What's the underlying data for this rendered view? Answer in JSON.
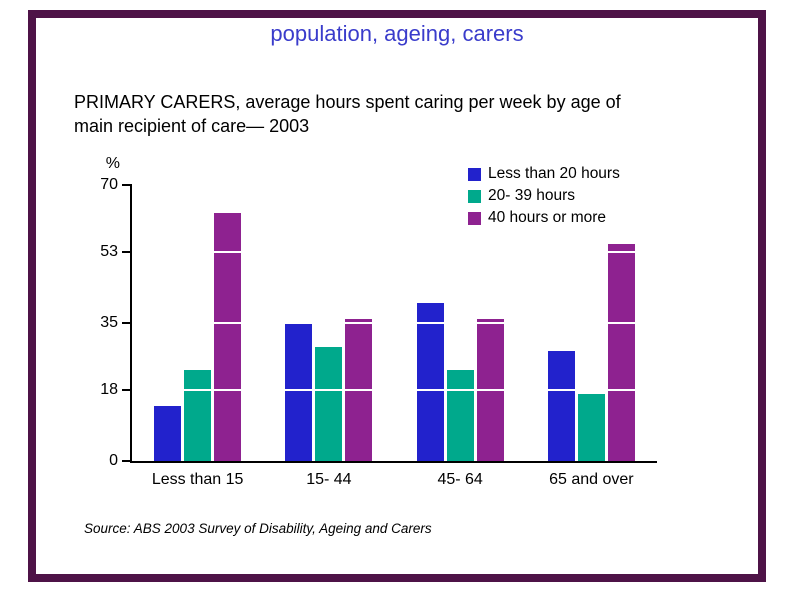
{
  "slide": {
    "title": "population, ageing, carers",
    "subtitle_line1": "PRIMARY CARERS, average hours spent caring per week by age of",
    "subtitle_line2": "main recipient of care— 2003",
    "source": "Source: ABS 2003 Survey of Disability, Ageing and Carers",
    "border_color": "#4e1347",
    "title_color": "#3a3ccb"
  },
  "chart_data": {
    "type": "bar",
    "title": "PRIMARY CARERS, average hours spent caring per week by age of main recipient of care— 2003",
    "ylabel": "%",
    "xlabel": "",
    "categories": [
      "Less than 15",
      "15- 44",
      "45- 64",
      "65 and over"
    ],
    "yticks": [
      0,
      18,
      35,
      53,
      70
    ],
    "ylim": [
      0,
      70
    ],
    "grid": "white-gridlines-over-bars",
    "legend_position": "top-right",
    "series": [
      {
        "name": "Less than 20 hours",
        "color": "#2222cc",
        "values": [
          14,
          35,
          40,
          28
        ]
      },
      {
        "name": "20- 39 hours",
        "color": "#00a98c",
        "values": [
          23,
          29,
          23,
          17
        ]
      },
      {
        "name": "40 hours or more",
        "color": "#8e2290",
        "values": [
          63,
          36,
          36,
          55
        ]
      }
    ]
  }
}
